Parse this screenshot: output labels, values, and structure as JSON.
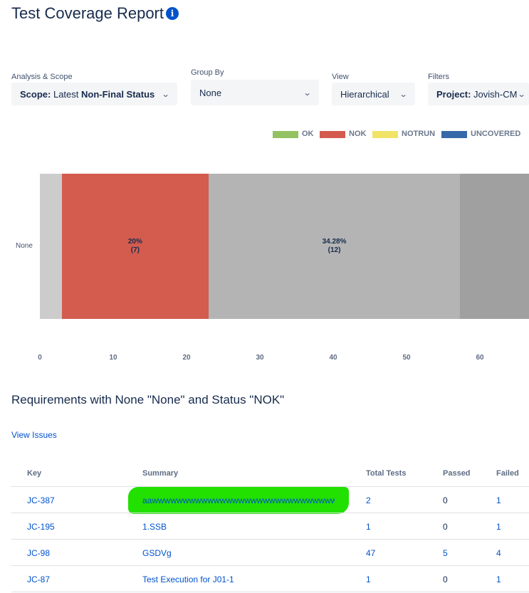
{
  "header": {
    "title": "Test Coverage Report",
    "info_icon": "info-icon"
  },
  "filters": {
    "analysis": {
      "label": "Analysis & Scope",
      "prefix": "Scope:",
      "value_light": "Latest",
      "value_bold": "Non-Final Status"
    },
    "group_by": {
      "label": "Group By",
      "value": "None"
    },
    "view": {
      "label": "View",
      "value": "Hierarchical"
    },
    "filters": {
      "label": "Filters",
      "prefix": "Project:",
      "value": "Jovish-CM"
    }
  },
  "legend": [
    {
      "label": "OK",
      "color": "#94c262"
    },
    {
      "label": "NOK",
      "color": "#d35c4e"
    },
    {
      "label": "NOTRUN",
      "color": "#f1e366"
    },
    {
      "label": "UNCOVERED",
      "color": "#3569a8"
    }
  ],
  "chart_data": {
    "type": "bar",
    "orientation": "horizontal",
    "stacked": true,
    "categories": [
      "None"
    ],
    "segments": [
      {
        "start": 0,
        "end": 3,
        "color": "#cccccc",
        "label": ""
      },
      {
        "start": 3,
        "end": 23,
        "color": "#d35c4e",
        "label": "20%",
        "count": "(7)"
      },
      {
        "start": 23,
        "end": 57.3,
        "color": "#b4b4b4",
        "label": "34.28%",
        "count": "(12)"
      },
      {
        "start": 57.3,
        "end": 67,
        "color": "#a0a0a0",
        "label": ""
      }
    ],
    "x_ticks": [
      0,
      10,
      20,
      30,
      40,
      50,
      60
    ],
    "xlim": [
      0,
      67
    ]
  },
  "requirements": {
    "title": "Requirements with None \"None\" and Status \"NOK\"",
    "view_issues": "View Issues",
    "columns": [
      "Key",
      "Summary",
      "Total Tests",
      "Passed",
      "Failed"
    ],
    "rows": [
      {
        "key": "JC-387",
        "summary": "aawwwwwwwwwwwwwwwwwwwwwwwwwwwwww...",
        "total": "2",
        "passed": "0",
        "failed": "1"
      },
      {
        "key": "JC-195",
        "summary": "1.SSB",
        "total": "1",
        "passed": "0",
        "failed": "1"
      },
      {
        "key": "JC-98",
        "summary": "GSDVg",
        "total": "47",
        "passed": "5",
        "failed": "4"
      },
      {
        "key": "JC-87",
        "summary": "Test Execution for J01-1",
        "total": "1",
        "passed": "0",
        "failed": "1"
      }
    ]
  }
}
